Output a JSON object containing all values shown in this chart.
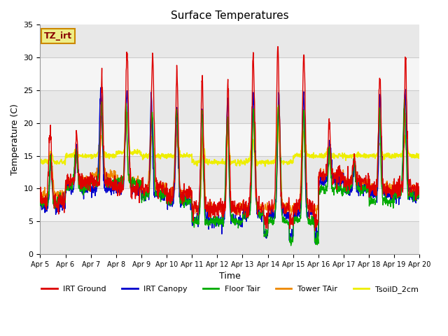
{
  "title": "Surface Temperatures",
  "ylabel": "Temperature (C)",
  "xlabel": "Time",
  "annotation": "TZ_irt",
  "ylim": [
    0,
    35
  ],
  "x_tick_labels": [
    "Apr 5",
    "Apr 6",
    "Apr 7",
    "Apr 8",
    "Apr 9",
    "Apr 10",
    "Apr 11",
    "Apr 12",
    "Apr 13",
    "Apr 14",
    "Apr 15",
    "Apr 16",
    "Apr 17",
    "Apr 18",
    "Apr 19",
    "Apr 20"
  ],
  "legend": [
    {
      "label": "IRT Ground",
      "color": "#dd0000"
    },
    {
      "label": "IRT Canopy",
      "color": "#0000cc"
    },
    {
      "label": "Floor Tair",
      "color": "#00aa00"
    },
    {
      "label": "Tower TAir",
      "color": "#ee8800"
    },
    {
      "label": "TsoilD_2cm",
      "color": "#eeee00"
    }
  ],
  "band_colors": [
    "#e8e8e8",
    "#f5f5f5"
  ],
  "grid_color": "#cccccc",
  "annotation_bg": "#eeee88",
  "annotation_fg": "#880000",
  "annotation_border": "#cc8800",
  "fig_bg": "#ffffff"
}
